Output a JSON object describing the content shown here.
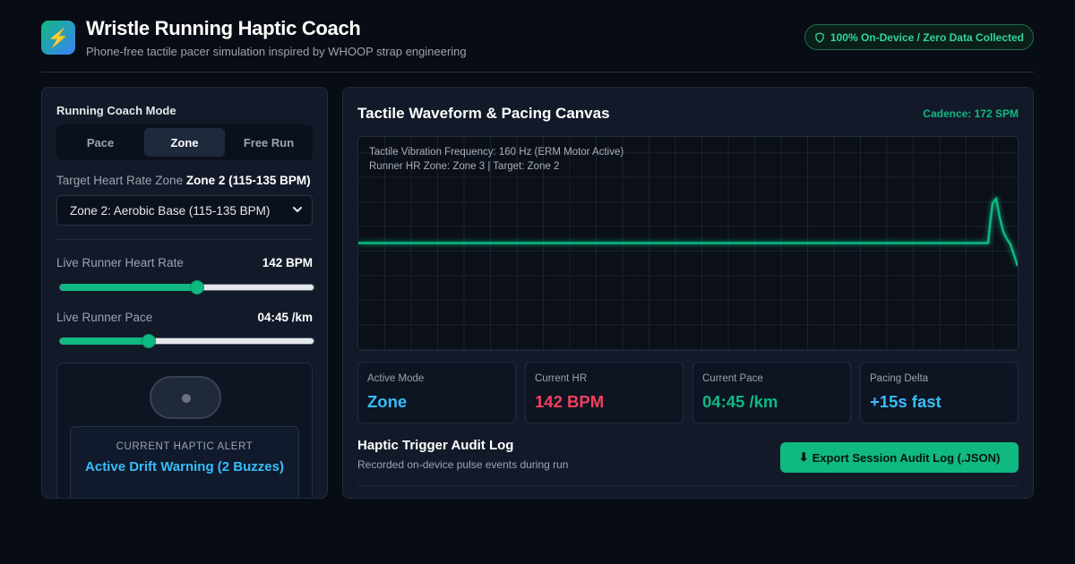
{
  "header": {
    "logo_icon": "lightning-icon",
    "title": "Wristle Running Haptic Coach",
    "subtitle": "Phone-free tactile pacer simulation inspired by WHOOP strap engineering",
    "privacy_badge": "100% On-Device / Zero Data Collected"
  },
  "left": {
    "mode_label": "Running Coach Mode",
    "modes": [
      {
        "label": "Pace",
        "active": false
      },
      {
        "label": "Zone",
        "active": true
      },
      {
        "label": "Free Run",
        "active": false
      }
    ],
    "target_zone_label": "Target Heart Rate Zone",
    "target_zone_value": "Zone 2 (115-135 BPM)",
    "zone_select_value": "Zone 2: Aerobic Base (115-135 BPM)",
    "hr_label": "Live Runner Heart Rate",
    "hr_value": "142 BPM",
    "hr_slider_fraction": 0.54,
    "pace_label": "Live Runner Pace",
    "pace_value": "04:45 /km",
    "pace_slider_fraction": 0.35,
    "haptic_caption": "CURRENT HAPTIC ALERT",
    "haptic_alert": "Active Drift Warning (2 Buzzes)"
  },
  "right": {
    "canvas_title": "Tactile Waveform & Pacing Canvas",
    "cadence": "Cadence: 172 SPM",
    "overlay_line1": "Tactile Vibration Frequency: 160 Hz (ERM Motor Active)",
    "overlay_line2": "Runner HR Zone: Zone 3 | Target: Zone 2",
    "stats": [
      {
        "label": "Active Mode",
        "value": "Zone",
        "color": "#38bdf8"
      },
      {
        "label": "Current HR",
        "value": "142 BPM",
        "color": "#f43f5e"
      },
      {
        "label": "Current Pace",
        "value": "04:45 /km",
        "color": "#10b981"
      },
      {
        "label": "Pacing Delta",
        "value": "+15s fast",
        "color": "#38bdf8"
      }
    ],
    "audit_title": "Haptic Trigger Audit Log",
    "audit_subtitle": "Recorded on-device pulse events during run",
    "export_label": "Export Session Audit Log (.JSON)",
    "export_icon": "download-icon"
  },
  "colors": {
    "accent": "#10b981",
    "background": "#080c14",
    "panel": "#121a29"
  }
}
